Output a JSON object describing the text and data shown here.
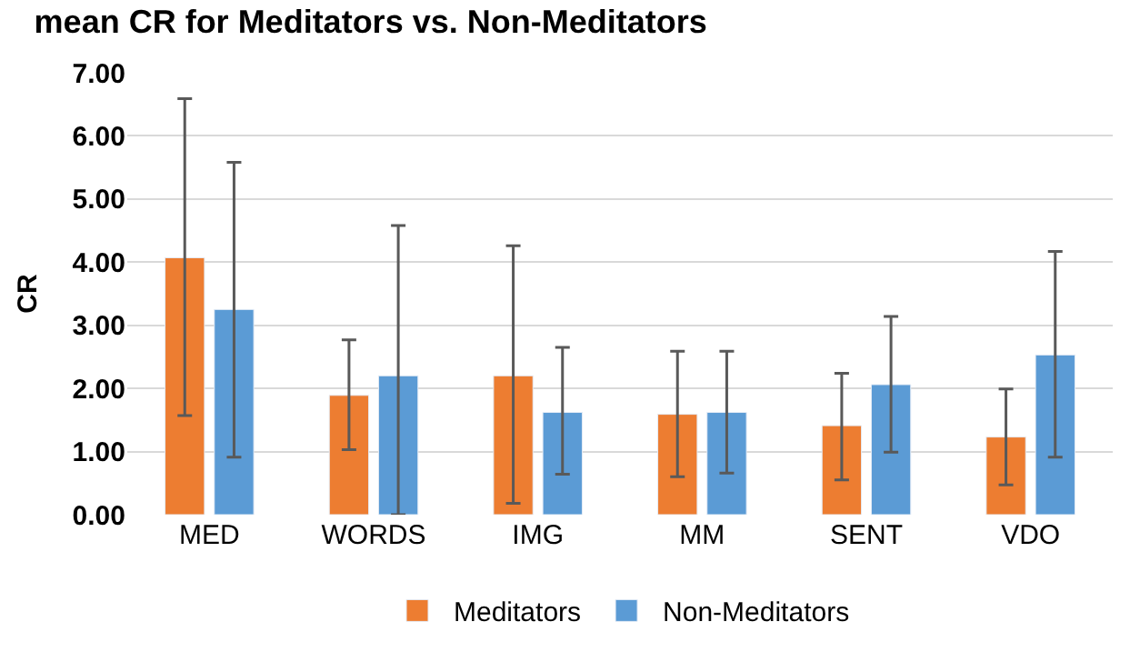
{
  "chart_data": {
    "type": "bar",
    "title": "mean CR for Meditators vs. Non-Meditators",
    "ylabel": "CR",
    "categories": [
      "MED",
      "WORDS",
      "IMG",
      "MM",
      "SENT",
      "VDO"
    ],
    "series": [
      {
        "name": "Meditators",
        "color": "#ed7d31",
        "values": [
          4.07,
          1.89,
          2.2,
          1.59,
          1.41,
          1.23
        ],
        "errors": [
          [
            1.57,
            6.59
          ],
          [
            1.03,
            2.77
          ],
          [
            0.18,
            4.26
          ],
          [
            0.6,
            2.59
          ],
          [
            0.55,
            2.24
          ],
          [
            0.47,
            1.99
          ]
        ]
      },
      {
        "name": "Non-Meditators",
        "color": "#5b9bd5",
        "values": [
          3.25,
          2.2,
          1.62,
          1.62,
          2.06,
          2.53
        ],
        "errors": [
          [
            0.91,
            5.58
          ],
          [
            0.0,
            4.58
          ],
          [
            0.64,
            2.65
          ],
          [
            0.66,
            2.59
          ],
          [
            0.99,
            3.14
          ],
          [
            0.91,
            4.17
          ]
        ]
      }
    ],
    "ylim": [
      0,
      7
    ],
    "yticks": [
      {
        "value": 0,
        "label": "0.00"
      },
      {
        "value": 1,
        "label": "1.00"
      },
      {
        "value": 2,
        "label": "2.00"
      },
      {
        "value": 3,
        "label": "3.00"
      },
      {
        "value": 4,
        "label": "4.00"
      },
      {
        "value": 5,
        "label": "5.00"
      },
      {
        "value": 6,
        "label": "6.00"
      },
      {
        "value": 7,
        "label": "7.00"
      }
    ],
    "grid": "y",
    "legend": "bottom"
  }
}
